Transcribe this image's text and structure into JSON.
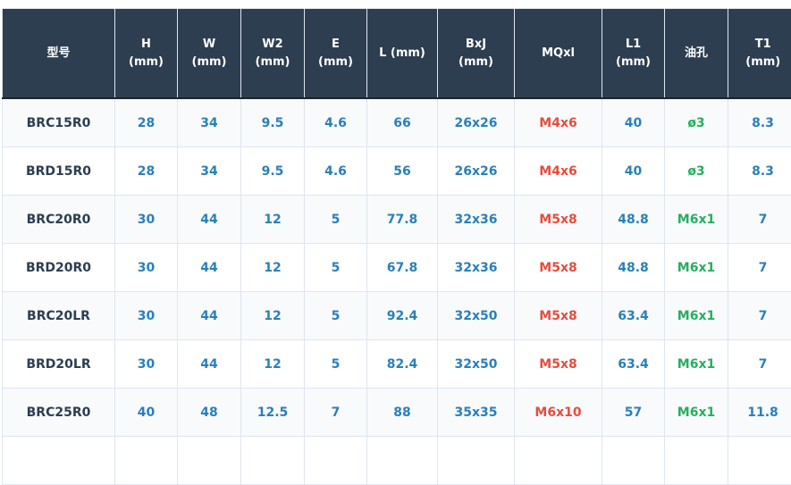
{
  "table": {
    "headers": [
      [
        "型号"
      ],
      [
        "H",
        "(mm)"
      ],
      [
        "W",
        "(mm)"
      ],
      [
        "W2",
        "(mm)"
      ],
      [
        "E",
        "(mm)"
      ],
      [
        "L (mm)"
      ],
      [
        "BxJ",
        "(mm)"
      ],
      [
        "MQxl"
      ],
      [
        "L1",
        "(mm)"
      ],
      [
        "油孔"
      ],
      [
        "T1",
        "(mm)"
      ]
    ],
    "rows": [
      [
        "BRC15R0",
        "28",
        "34",
        "9.5",
        "4.6",
        "66",
        "26x26",
        "M4x6",
        "40",
        "ø3",
        "8.3"
      ],
      [
        "BRD15R0",
        "28",
        "34",
        "9.5",
        "4.6",
        "56",
        "26x26",
        "M4x6",
        "40",
        "ø3",
        "8.3"
      ],
      [
        "BRC20R0",
        "30",
        "44",
        "12",
        "5",
        "77.8",
        "32x36",
        "M5x8",
        "48.8",
        "M6x1",
        "7"
      ],
      [
        "BRD20R0",
        "30",
        "44",
        "12",
        "5",
        "67.8",
        "32x36",
        "M5x8",
        "48.8",
        "M6x1",
        "7"
      ],
      [
        "BRC20LR",
        "30",
        "44",
        "12",
        "5",
        "92.4",
        "32x50",
        "M5x8",
        "63.4",
        "M6x1",
        "7"
      ],
      [
        "BRD20LR",
        "30",
        "44",
        "12",
        "5",
        "82.4",
        "32x50",
        "M5x8",
        "63.4",
        "M6x1",
        "7"
      ],
      [
        "BRC25R0",
        "40",
        "48",
        "12.5",
        "7",
        "88",
        "35x35",
        "M6x10",
        "57",
        "M6x1",
        "11.8"
      ],
      [
        "",
        "",
        "",
        "",
        "",
        "",
        "",
        "",
        "",
        "",
        ""
      ]
    ]
  },
  "colors": {
    "header_bg": "#2c3e50",
    "number": "#2980b9",
    "screw": "#e74c3c",
    "oil_hole": "#27ae60",
    "model": "#2c3e50"
  }
}
